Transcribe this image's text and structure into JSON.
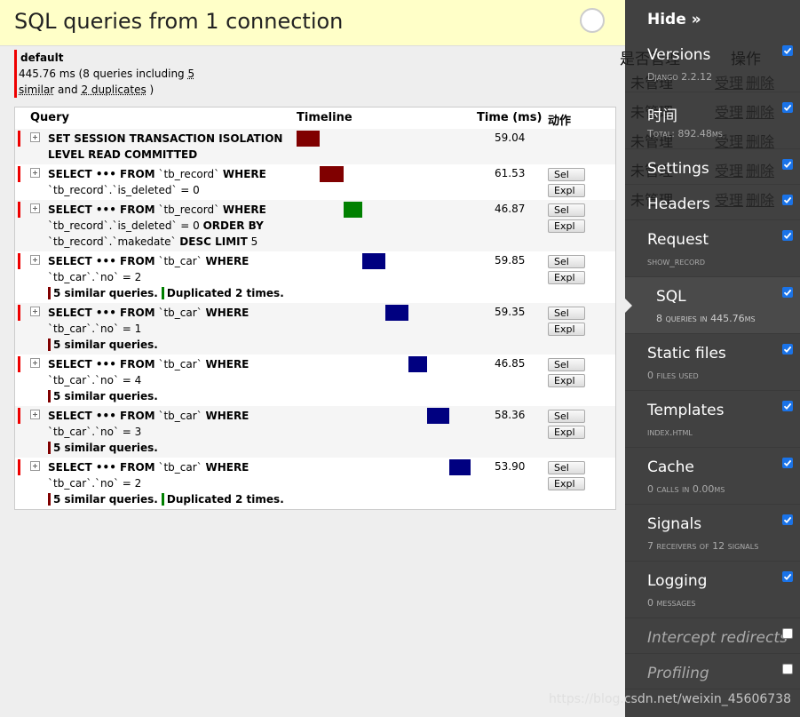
{
  "header": {
    "title": "SQL queries from 1 connection"
  },
  "connection": {
    "name": "default",
    "summary": [
      "445.76 ms (8 queries including ",
      "5 similar",
      " and ",
      "2 duplicates",
      " )"
    ]
  },
  "table": {
    "columns": [
      "Query",
      "Timeline",
      "Time (ms)",
      "动作"
    ],
    "rows": [
      {
        "query": [
          {
            "text": "SET SESSION TRANSACTION ISOLATION LEVEL READ COMMITTED",
            "bold": true
          }
        ],
        "time": 59.04,
        "color": "#800000",
        "actions": [],
        "notes": []
      },
      {
        "query": [
          {
            "text": "SELECT ••• FROM",
            "bold": true
          },
          {
            "text": " `tb_record` "
          },
          {
            "text": "WHERE",
            "bold": true
          },
          {
            "text": " `tb_record`.`is_deleted` = 0"
          }
        ],
        "time": 61.53,
        "color": "#800000",
        "actions": [
          "Sel",
          "Expl"
        ],
        "notes": []
      },
      {
        "query": [
          {
            "text": "SELECT ••• FROM",
            "bold": true
          },
          {
            "text": " `tb_record` "
          },
          {
            "text": "WHERE",
            "bold": true
          },
          {
            "text": " `tb_record`.`is_deleted` = 0 "
          },
          {
            "text": "ORDER BY",
            "bold": true
          },
          {
            "text": " `tb_record`.`makedate` "
          },
          {
            "text": "DESC LIMIT",
            "bold": true
          },
          {
            "text": " 5"
          }
        ],
        "time": 46.87,
        "color": "#008000",
        "actions": [
          "Sel",
          "Expl"
        ],
        "notes": []
      },
      {
        "query": [
          {
            "text": "SELECT ••• FROM",
            "bold": true
          },
          {
            "text": " `tb_car` "
          },
          {
            "text": "WHERE",
            "bold": true
          },
          {
            "text": " `tb_car`.`no` = 2"
          }
        ],
        "time": 59.85,
        "color": "#000080",
        "actions": [
          "Sel",
          "Expl"
        ],
        "notes": [
          {
            "text": "5 similar queries.",
            "color": "#800000"
          },
          {
            "text": "Duplicated 2 times.",
            "color": "#008000"
          }
        ]
      },
      {
        "query": [
          {
            "text": "SELECT ••• FROM",
            "bold": true
          },
          {
            "text": " `tb_car` "
          },
          {
            "text": "WHERE",
            "bold": true
          },
          {
            "text": " `tb_car`.`no` = 1"
          }
        ],
        "time": 59.35,
        "color": "#000080",
        "actions": [
          "Sel",
          "Expl"
        ],
        "notes": [
          {
            "text": "5 similar queries.",
            "color": "#800000"
          }
        ]
      },
      {
        "query": [
          {
            "text": "SELECT ••• FROM",
            "bold": true
          },
          {
            "text": " `tb_car` "
          },
          {
            "text": "WHERE",
            "bold": true
          },
          {
            "text": " `tb_car`.`no` = 4"
          }
        ],
        "time": 46.85,
        "color": "#000080",
        "actions": [
          "Sel",
          "Expl"
        ],
        "notes": [
          {
            "text": "5 similar queries.",
            "color": "#800000"
          }
        ]
      },
      {
        "query": [
          {
            "text": "SELECT ••• FROM",
            "bold": true
          },
          {
            "text": " `tb_car` "
          },
          {
            "text": "WHERE",
            "bold": true
          },
          {
            "text": " `tb_car`.`no` = 3"
          }
        ],
        "time": 58.36,
        "color": "#000080",
        "actions": [
          "Sel",
          "Expl"
        ],
        "notes": [
          {
            "text": "5 similar queries.",
            "color": "#800000"
          }
        ]
      },
      {
        "query": [
          {
            "text": "SELECT ••• FROM",
            "bold": true
          },
          {
            "text": " `tb_car` "
          },
          {
            "text": "WHERE",
            "bold": true
          },
          {
            "text": " `tb_car`.`no` = 2"
          }
        ],
        "time": 53.9,
        "time_label": "53.90",
        "color": "#000080",
        "actions": [
          "Sel",
          "Expl"
        ],
        "notes": [
          {
            "text": "5 similar queries.",
            "color": "#800000"
          },
          {
            "text": "Duplicated 2 times.",
            "color": "#008000"
          }
        ]
      }
    ]
  },
  "background": {
    "headers": [
      "是否管理",
      "操作"
    ],
    "rows": [
      [
        "未管理",
        "受理",
        "删除"
      ],
      [
        "未管理",
        "受理",
        "删除"
      ],
      [
        "未管理",
        "受理",
        "删除"
      ],
      [
        "未管理",
        "受理",
        "删除"
      ],
      [
        "未管理",
        "受理",
        "删除"
      ]
    ]
  },
  "sidebar": {
    "hide": "Hide »",
    "items": [
      {
        "title": "Versions",
        "subtitle": "Django 2.2.12",
        "checked": true
      },
      {
        "title": "时间",
        "subtitle": "Total: 892.48ms",
        "checked": true
      },
      {
        "title": "Settings",
        "checked": true
      },
      {
        "title": "Headers",
        "checked": true
      },
      {
        "title": "Request",
        "subtitle": "show_record",
        "checked": true
      },
      {
        "title": "SQL",
        "subtitle": "8 queries in 445.76ms",
        "checked": true,
        "active": true
      },
      {
        "title": "Static files",
        "subtitle": "0 files used",
        "checked": true
      },
      {
        "title": "Templates",
        "subtitle": "index.html",
        "checked": true
      },
      {
        "title": "Cache",
        "subtitle": "0 calls in 0.00ms",
        "checked": true
      },
      {
        "title": "Signals",
        "subtitle": "7 receivers of 12 signals",
        "checked": true
      },
      {
        "title": "Logging",
        "subtitle": "0 messages",
        "checked": true
      },
      {
        "title": "Intercept redirects",
        "checked": false,
        "disabled": true
      },
      {
        "title": "Profiling",
        "checked": false,
        "disabled": true
      }
    ]
  },
  "watermark": "https://blog.csdn.net/weixin_45606738"
}
